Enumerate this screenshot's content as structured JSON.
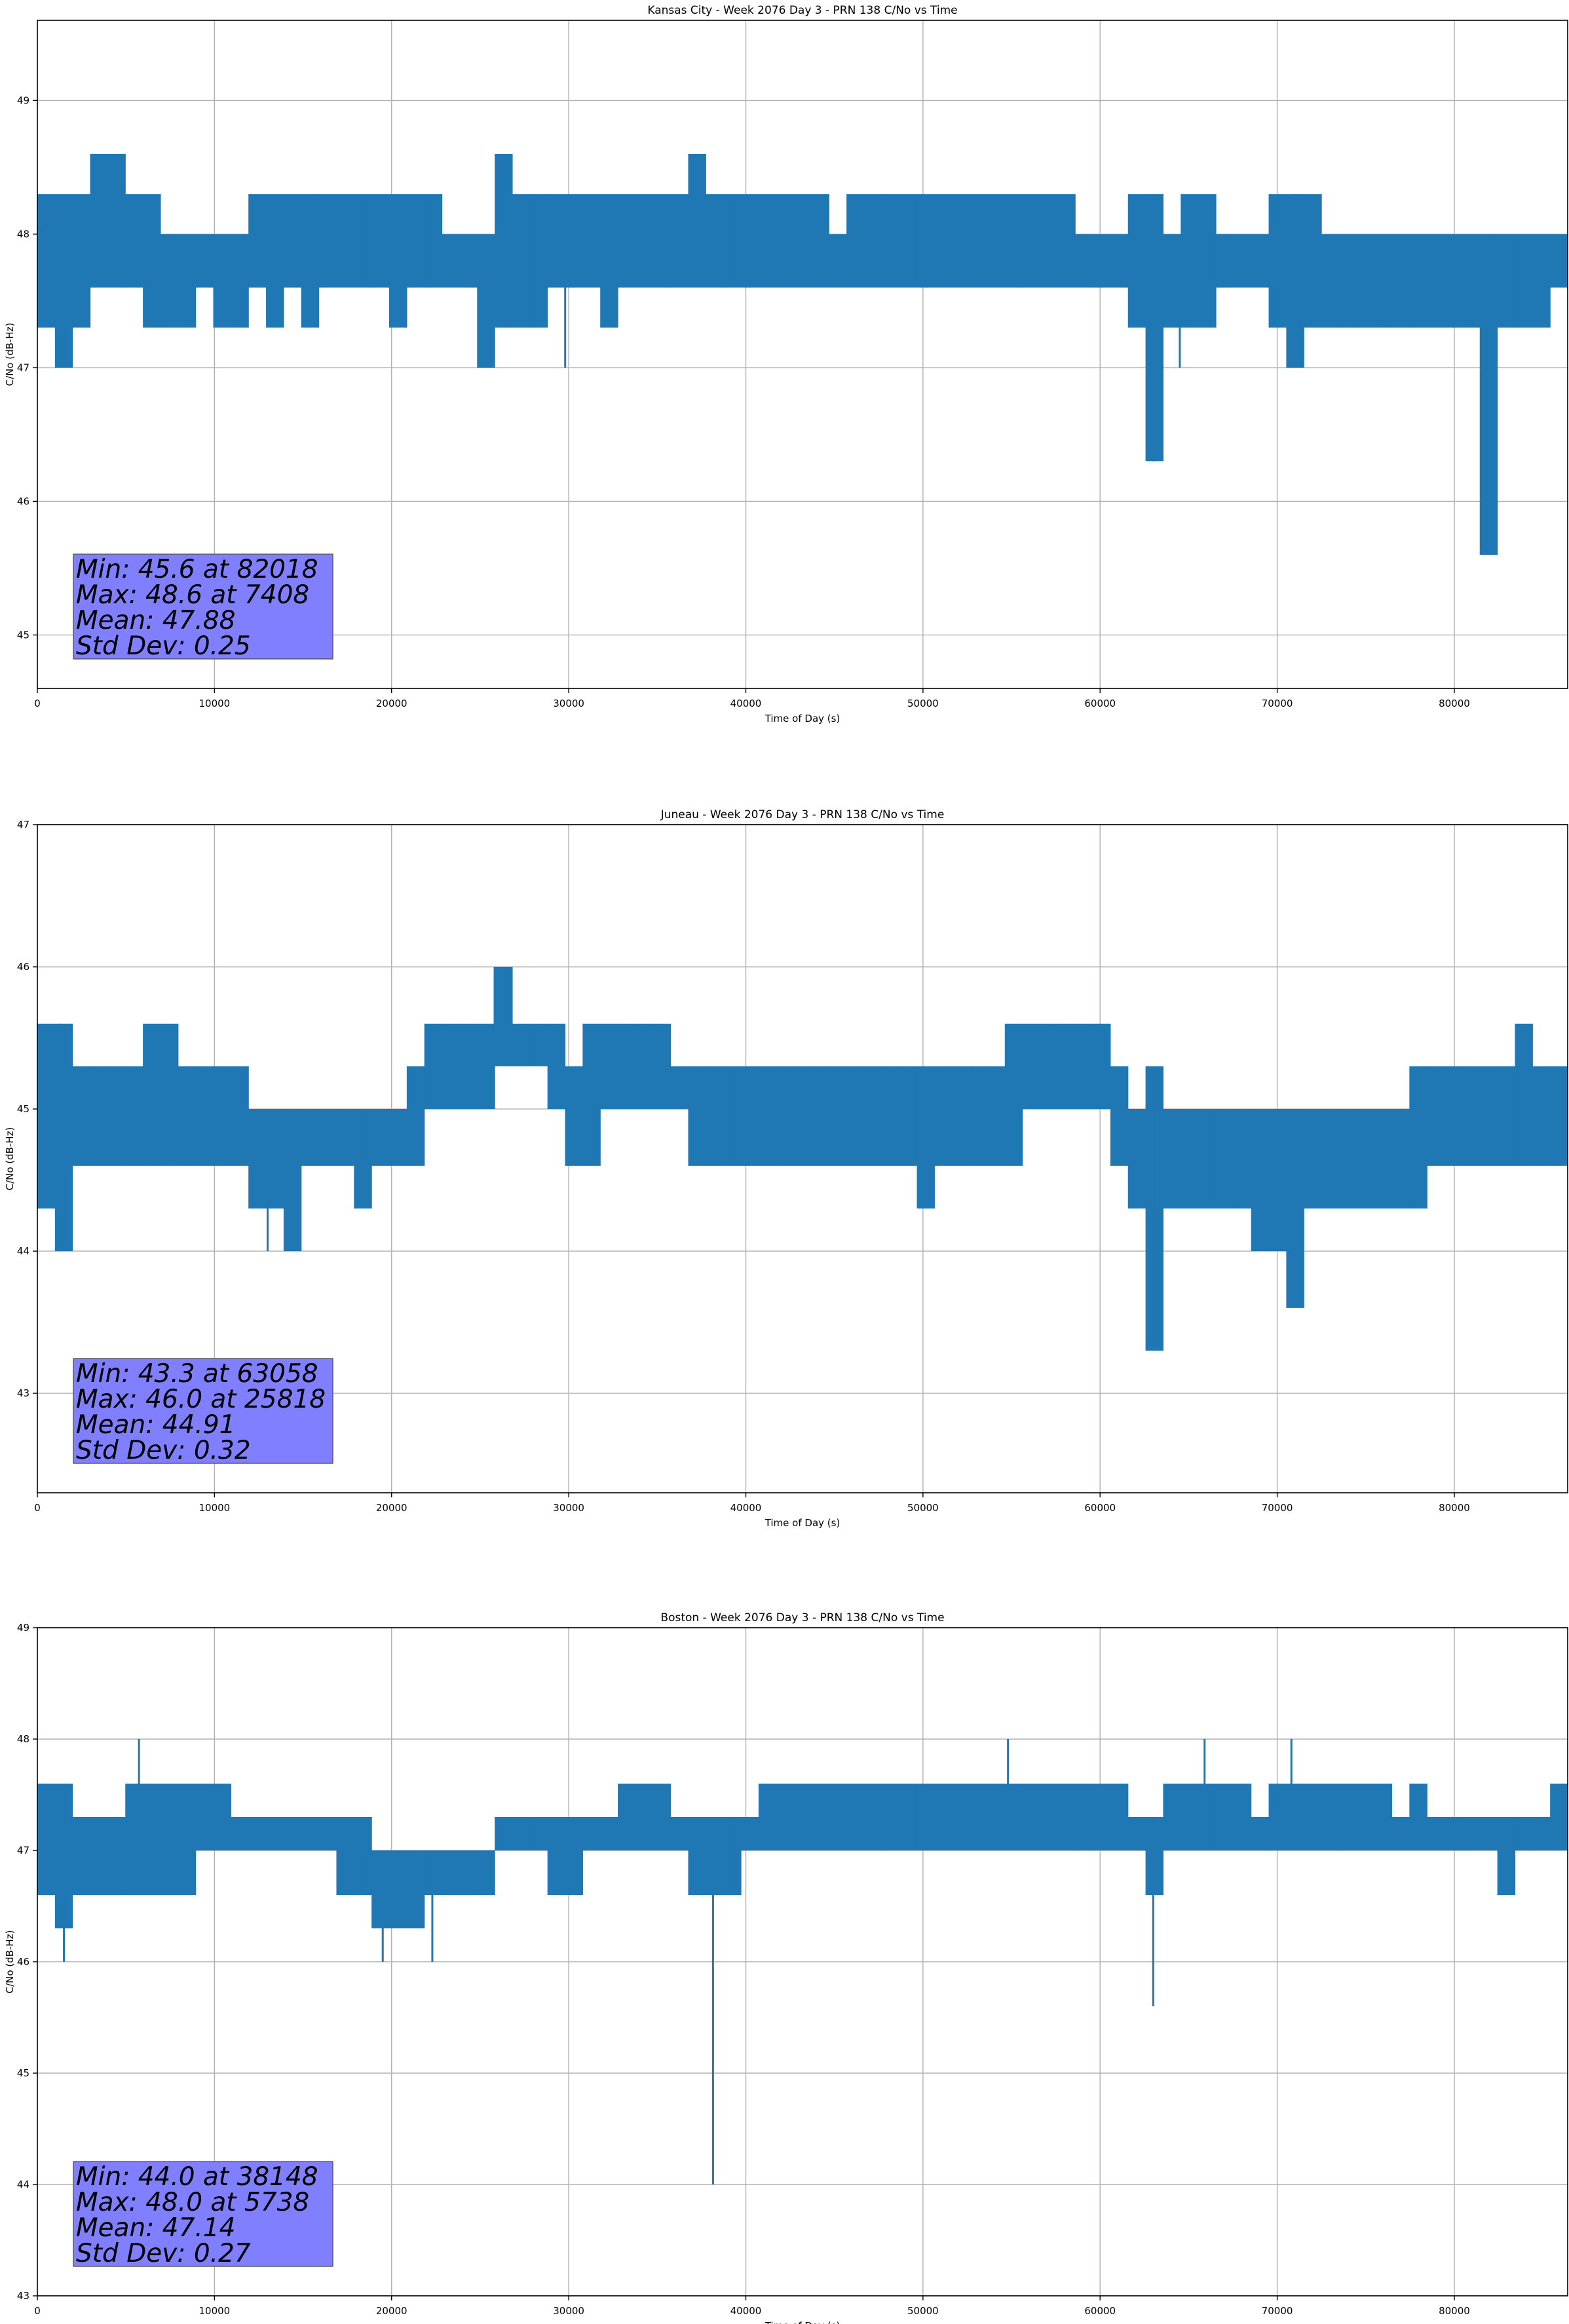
{
  "chart_data": [
    {
      "type": "line",
      "title": "Kansas City - Week 2076 Day 3 - PRN 138 C/No vs Time",
      "xlabel": "Time of Day (s)",
      "ylabel": "C/No (dB-Hz)",
      "xlim": [
        0,
        86400
      ],
      "ylim": [
        44.6,
        49.6
      ],
      "xticks": [
        0,
        10000,
        20000,
        30000,
        40000,
        50000,
        60000,
        70000,
        80000
      ],
      "yticks": [
        45,
        46,
        47,
        48,
        49
      ],
      "grid": true,
      "series_color": "#1f77b4",
      "band": {
        "bins": [
          [
            47.3,
            48.3
          ],
          [
            47.0,
            48.3
          ],
          [
            47.3,
            48.3
          ],
          [
            47.6,
            48.6
          ],
          [
            47.6,
            48.6
          ],
          [
            47.6,
            48.3
          ],
          [
            47.3,
            48.3
          ],
          [
            47.3,
            48.0
          ],
          [
            47.3,
            48.0
          ],
          [
            47.6,
            48.0
          ],
          [
            47.3,
            48.0
          ],
          [
            47.3,
            48.0
          ],
          [
            47.6,
            48.3
          ],
          [
            47.3,
            48.3
          ],
          [
            47.6,
            48.3
          ],
          [
            47.3,
            48.3
          ],
          [
            47.6,
            48.3
          ],
          [
            47.6,
            48.3
          ],
          [
            47.6,
            48.3
          ],
          [
            47.6,
            48.3
          ],
          [
            47.3,
            48.3
          ],
          [
            47.6,
            48.3
          ],
          [
            47.6,
            48.3
          ],
          [
            47.6,
            48.0
          ],
          [
            47.6,
            48.0
          ],
          [
            47.0,
            48.0
          ],
          [
            47.3,
            48.6
          ],
          [
            47.3,
            48.3
          ],
          [
            47.3,
            48.3
          ],
          [
            47.6,
            48.3
          ],
          [
            47.6,
            48.3
          ],
          [
            47.6,
            48.3
          ],
          [
            47.3,
            48.3
          ],
          [
            47.6,
            48.3
          ],
          [
            47.6,
            48.3
          ],
          [
            47.6,
            48.3
          ],
          [
            47.6,
            48.3
          ],
          [
            47.6,
            48.6
          ],
          [
            47.6,
            48.3
          ],
          [
            47.6,
            48.3
          ],
          [
            47.6,
            48.3
          ],
          [
            47.6,
            48.3
          ],
          [
            47.6,
            48.3
          ],
          [
            47.6,
            48.3
          ],
          [
            47.6,
            48.3
          ],
          [
            47.6,
            48.0
          ],
          [
            47.6,
            48.3
          ],
          [
            47.6,
            48.3
          ],
          [
            47.6,
            48.3
          ],
          [
            47.6,
            48.3
          ],
          [
            47.6,
            48.3
          ],
          [
            47.6,
            48.3
          ],
          [
            47.6,
            48.3
          ],
          [
            47.6,
            48.3
          ],
          [
            47.6,
            48.3
          ],
          [
            47.6,
            48.3
          ],
          [
            47.6,
            48.3
          ],
          [
            47.6,
            48.3
          ],
          [
            47.6,
            48.3
          ],
          [
            47.6,
            48.0
          ],
          [
            47.6,
            48.0
          ],
          [
            47.6,
            48.0
          ],
          [
            47.3,
            48.3
          ],
          [
            46.3,
            48.3
          ],
          [
            47.3,
            48.0
          ],
          [
            47.3,
            48.3
          ],
          [
            47.3,
            48.3
          ],
          [
            47.6,
            48.0
          ],
          [
            47.6,
            48.0
          ],
          [
            47.6,
            48.0
          ],
          [
            47.3,
            48.3
          ],
          [
            47.0,
            48.3
          ],
          [
            47.3,
            48.3
          ],
          [
            47.3,
            48.0
          ],
          [
            47.3,
            48.0
          ],
          [
            47.3,
            48.0
          ],
          [
            47.3,
            48.0
          ],
          [
            47.3,
            48.0
          ],
          [
            47.3,
            48.0
          ],
          [
            47.3,
            48.0
          ],
          [
            47.3,
            48.0
          ],
          [
            47.3,
            48.0
          ],
          [
            45.6,
            48.0
          ],
          [
            47.3,
            48.0
          ],
          [
            47.3,
            48.0
          ],
          [
            47.3,
            48.0
          ],
          [
            47.6,
            48.0
          ]
        ]
      },
      "spikes": [
        {
          "x": 82018,
          "y": 45.6
        },
        {
          "x": 63000,
          "y": 46.3
        },
        {
          "x": 29800,
          "y": 47.0
        },
        {
          "x": 71000,
          "y": 47.0
        },
        {
          "x": 64500,
          "y": 47.0
        }
      ],
      "stats": {
        "min": "Min: 45.6 at 82018",
        "max": "Max: 48.6 at 7408",
        "mean": "Mean: 47.88",
        "std": "Std Dev: 0.25"
      }
    },
    {
      "type": "line",
      "title": "Juneau - Week 2076 Day 3 - PRN 138 C/No vs Time",
      "xlabel": "Time of Day (s)",
      "ylabel": "C/No (dB-Hz)",
      "xlim": [
        0,
        86400
      ],
      "ylim": [
        42.3,
        47.0
      ],
      "xticks": [
        0,
        10000,
        20000,
        30000,
        40000,
        50000,
        60000,
        70000,
        80000
      ],
      "yticks": [
        43,
        44,
        45,
        46,
        47
      ],
      "grid": true,
      "series_color": "#1f77b4",
      "band": {
        "bins": [
          [
            44.3,
            45.6
          ],
          [
            44.0,
            45.6
          ],
          [
            44.6,
            45.3
          ],
          [
            44.6,
            45.3
          ],
          [
            44.6,
            45.3
          ],
          [
            44.6,
            45.3
          ],
          [
            44.6,
            45.6
          ],
          [
            44.6,
            45.6
          ],
          [
            44.6,
            45.3
          ],
          [
            44.6,
            45.3
          ],
          [
            44.6,
            45.3
          ],
          [
            44.6,
            45.3
          ],
          [
            44.3,
            45.0
          ],
          [
            44.3,
            45.0
          ],
          [
            44.0,
            45.0
          ],
          [
            44.6,
            45.0
          ],
          [
            44.6,
            45.0
          ],
          [
            44.6,
            45.0
          ],
          [
            44.3,
            45.0
          ],
          [
            44.6,
            45.0
          ],
          [
            44.6,
            45.0
          ],
          [
            44.6,
            45.3
          ],
          [
            45.0,
            45.6
          ],
          [
            45.0,
            45.6
          ],
          [
            45.0,
            45.6
          ],
          [
            45.0,
            45.6
          ],
          [
            45.3,
            46.0
          ],
          [
            45.3,
            45.6
          ],
          [
            45.3,
            45.6
          ],
          [
            45.0,
            45.6
          ],
          [
            44.6,
            45.3
          ],
          [
            44.6,
            45.6
          ],
          [
            45.0,
            45.6
          ],
          [
            45.0,
            45.6
          ],
          [
            45.0,
            45.6
          ],
          [
            45.0,
            45.6
          ],
          [
            45.0,
            45.3
          ],
          [
            44.6,
            45.3
          ],
          [
            44.6,
            45.3
          ],
          [
            44.6,
            45.3
          ],
          [
            44.6,
            45.3
          ],
          [
            44.6,
            45.3
          ],
          [
            44.6,
            45.3
          ],
          [
            44.6,
            45.3
          ],
          [
            44.6,
            45.3
          ],
          [
            44.6,
            45.3
          ],
          [
            44.6,
            45.3
          ],
          [
            44.6,
            45.3
          ],
          [
            44.6,
            45.3
          ],
          [
            44.6,
            45.3
          ],
          [
            44.3,
            45.3
          ],
          [
            44.6,
            45.3
          ],
          [
            44.6,
            45.3
          ],
          [
            44.6,
            45.3
          ],
          [
            44.6,
            45.3
          ],
          [
            44.6,
            45.6
          ],
          [
            45.0,
            45.6
          ],
          [
            45.0,
            45.6
          ],
          [
            45.0,
            45.6
          ],
          [
            45.0,
            45.6
          ],
          [
            45.0,
            45.6
          ],
          [
            44.6,
            45.3
          ],
          [
            44.3,
            45.0
          ],
          [
            43.3,
            45.3
          ],
          [
            44.3,
            45.0
          ],
          [
            44.3,
            45.0
          ],
          [
            44.3,
            45.0
          ],
          [
            44.3,
            45.0
          ],
          [
            44.3,
            45.0
          ],
          [
            44.0,
            45.0
          ],
          [
            44.0,
            45.0
          ],
          [
            43.6,
            45.0
          ],
          [
            44.3,
            45.0
          ],
          [
            44.3,
            45.0
          ],
          [
            44.3,
            45.0
          ],
          [
            44.3,
            45.0
          ],
          [
            44.3,
            45.0
          ],
          [
            44.3,
            45.0
          ],
          [
            44.3,
            45.3
          ],
          [
            44.6,
            45.3
          ],
          [
            44.6,
            45.3
          ],
          [
            44.6,
            45.3
          ],
          [
            44.6,
            45.3
          ],
          [
            44.6,
            45.3
          ],
          [
            44.6,
            45.6
          ],
          [
            44.6,
            45.3
          ],
          [
            44.6,
            45.3
          ]
        ]
      },
      "spikes": [
        {
          "x": 63058,
          "y": 43.3
        },
        {
          "x": 70800,
          "y": 43.6
        },
        {
          "x": 1300,
          "y": 44.0
        },
        {
          "x": 13000,
          "y": 44.0
        },
        {
          "x": 25818,
          "y": 46.0
        }
      ],
      "stats": {
        "min": "Min: 43.3 at 63058",
        "max": "Max: 46.0 at 25818",
        "mean": "Mean: 44.91",
        "std": "Std Dev: 0.32"
      }
    },
    {
      "type": "line",
      "title": "Boston - Week 2076 Day 3 - PRN 138 C/No vs Time",
      "xlabel": "Time of Day (s)",
      "ylabel": "C/No (dB-Hz)",
      "xlim": [
        0,
        86400
      ],
      "ylim": [
        43.0,
        49.0
      ],
      "xticks": [
        0,
        10000,
        20000,
        30000,
        40000,
        50000,
        60000,
        70000,
        80000
      ],
      "yticks": [
        43,
        44,
        45,
        46,
        47,
        48,
        49
      ],
      "grid": true,
      "series_color": "#1f77b4",
      "band": {
        "bins": [
          [
            46.6,
            47.6
          ],
          [
            46.3,
            47.6
          ],
          [
            46.6,
            47.3
          ],
          [
            46.6,
            47.3
          ],
          [
            46.6,
            47.3
          ],
          [
            46.6,
            47.6
          ],
          [
            46.6,
            47.6
          ],
          [
            46.6,
            47.6
          ],
          [
            46.6,
            47.6
          ],
          [
            47.0,
            47.6
          ],
          [
            47.0,
            47.6
          ],
          [
            47.0,
            47.3
          ],
          [
            47.0,
            47.3
          ],
          [
            47.0,
            47.3
          ],
          [
            47.0,
            47.3
          ],
          [
            47.0,
            47.3
          ],
          [
            47.0,
            47.3
          ],
          [
            46.6,
            47.3
          ],
          [
            46.6,
            47.3
          ],
          [
            46.3,
            47.0
          ],
          [
            46.3,
            47.0
          ],
          [
            46.3,
            47.0
          ],
          [
            46.6,
            47.0
          ],
          [
            46.6,
            47.0
          ],
          [
            46.6,
            47.0
          ],
          [
            46.6,
            47.0
          ],
          [
            47.0,
            47.3
          ],
          [
            47.0,
            47.3
          ],
          [
            47.0,
            47.3
          ],
          [
            46.6,
            47.3
          ],
          [
            46.6,
            47.3
          ],
          [
            47.0,
            47.3
          ],
          [
            47.0,
            47.3
          ],
          [
            47.0,
            47.6
          ],
          [
            47.0,
            47.6
          ],
          [
            47.0,
            47.6
          ],
          [
            47.0,
            47.3
          ],
          [
            46.6,
            47.3
          ],
          [
            46.6,
            47.3
          ],
          [
            46.6,
            47.3
          ],
          [
            47.0,
            47.3
          ],
          [
            47.0,
            47.6
          ],
          [
            47.0,
            47.6
          ],
          [
            47.0,
            47.6
          ],
          [
            47.0,
            47.6
          ],
          [
            47.0,
            47.6
          ],
          [
            47.0,
            47.6
          ],
          [
            47.0,
            47.6
          ],
          [
            47.0,
            47.6
          ],
          [
            47.0,
            47.6
          ],
          [
            47.0,
            47.6
          ],
          [
            47.0,
            47.6
          ],
          [
            47.0,
            47.6
          ],
          [
            47.0,
            47.6
          ],
          [
            47.0,
            47.6
          ],
          [
            47.0,
            47.6
          ],
          [
            47.0,
            47.6
          ],
          [
            47.0,
            47.6
          ],
          [
            47.0,
            47.6
          ],
          [
            47.0,
            47.6
          ],
          [
            47.0,
            47.6
          ],
          [
            47.0,
            47.6
          ],
          [
            47.0,
            47.3
          ],
          [
            46.6,
            47.3
          ],
          [
            47.0,
            47.6
          ],
          [
            47.0,
            47.6
          ],
          [
            47.0,
            47.6
          ],
          [
            47.0,
            47.6
          ],
          [
            47.0,
            47.6
          ],
          [
            47.0,
            47.3
          ],
          [
            47.0,
            47.6
          ],
          [
            47.0,
            47.6
          ],
          [
            47.0,
            47.6
          ],
          [
            47.0,
            47.6
          ],
          [
            47.0,
            47.6
          ],
          [
            47.0,
            47.6
          ],
          [
            47.0,
            47.6
          ],
          [
            47.0,
            47.3
          ],
          [
            47.0,
            47.6
          ],
          [
            47.0,
            47.3
          ],
          [
            47.0,
            47.3
          ],
          [
            47.0,
            47.3
          ],
          [
            47.0,
            47.3
          ],
          [
            46.6,
            47.3
          ],
          [
            47.0,
            47.3
          ],
          [
            47.0,
            47.3
          ],
          [
            47.0,
            47.6
          ]
        ]
      },
      "spikes": [
        {
          "x": 38148,
          "y": 44.0
        },
        {
          "x": 63000,
          "y": 45.6
        },
        {
          "x": 1500,
          "y": 46.0
        },
        {
          "x": 19500,
          "y": 46.0
        },
        {
          "x": 22300,
          "y": 46.0
        },
        {
          "x": 5738,
          "y": 48.0
        },
        {
          "x": 54800,
          "y": 48.0
        },
        {
          "x": 65900,
          "y": 48.0
        },
        {
          "x": 70800,
          "y": 48.0
        }
      ],
      "stats": {
        "min": "Min: 44.0 at 38148",
        "max": "Max: 48.0 at 5738",
        "mean": "Mean: 47.14",
        "std": "Std Dev: 0.27"
      }
    }
  ]
}
